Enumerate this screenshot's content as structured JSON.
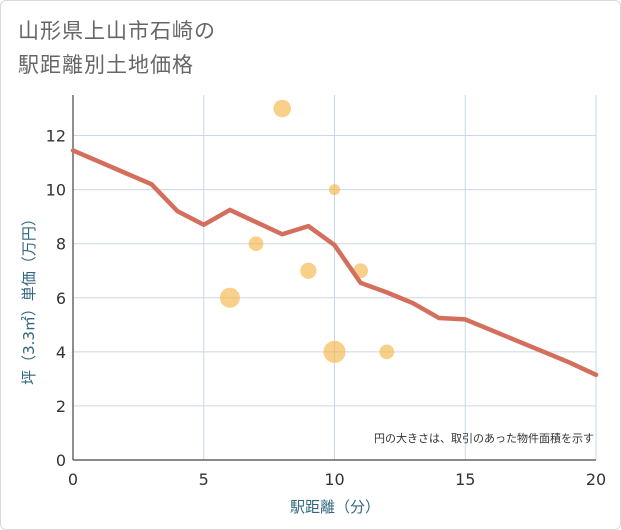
{
  "title_line1": "山形県上山市石崎の",
  "title_line2": "駅距離別土地価格",
  "chart_data": {
    "type": "scatter+line",
    "xlabel": "駅距離（分）",
    "ylabel": "坪（3.3㎡）単価（万円）",
    "xlim": [
      0,
      20
    ],
    "ylim": [
      0,
      13.5
    ],
    "x_ticks": [
      0,
      5,
      10,
      15,
      20
    ],
    "y_ticks": [
      0,
      2,
      4,
      6,
      8,
      10,
      12
    ],
    "grid": true,
    "note": "円の大きさは、取引のあった物件面積を示す",
    "line": {
      "name": "trend",
      "color": "#d36f5c",
      "x": [
        0,
        3,
        4,
        5,
        6,
        7,
        8,
        9,
        10,
        11,
        12,
        13,
        14,
        15,
        16,
        17,
        18,
        19,
        20
      ],
      "y": [
        11.45,
        10.2,
        9.2,
        8.7,
        9.25,
        8.8,
        8.35,
        8.65,
        7.95,
        6.55,
        6.2,
        5.8,
        5.25,
        5.2,
        4.8,
        4.4,
        4.0,
        3.6,
        3.15
      ]
    },
    "bubbles": {
      "color": "#f5b74c",
      "points": [
        {
          "x": 8,
          "y": 13,
          "size": 3
        },
        {
          "x": 10,
          "y": 10,
          "size": 1
        },
        {
          "x": 7,
          "y": 8,
          "size": 2
        },
        {
          "x": 9,
          "y": 7,
          "size": 2.5
        },
        {
          "x": 11,
          "y": 7,
          "size": 2
        },
        {
          "x": 6,
          "y": 6,
          "size": 4
        },
        {
          "x": 10,
          "y": 4,
          "size": 5
        },
        {
          "x": 12,
          "y": 4,
          "size": 2
        }
      ]
    }
  }
}
